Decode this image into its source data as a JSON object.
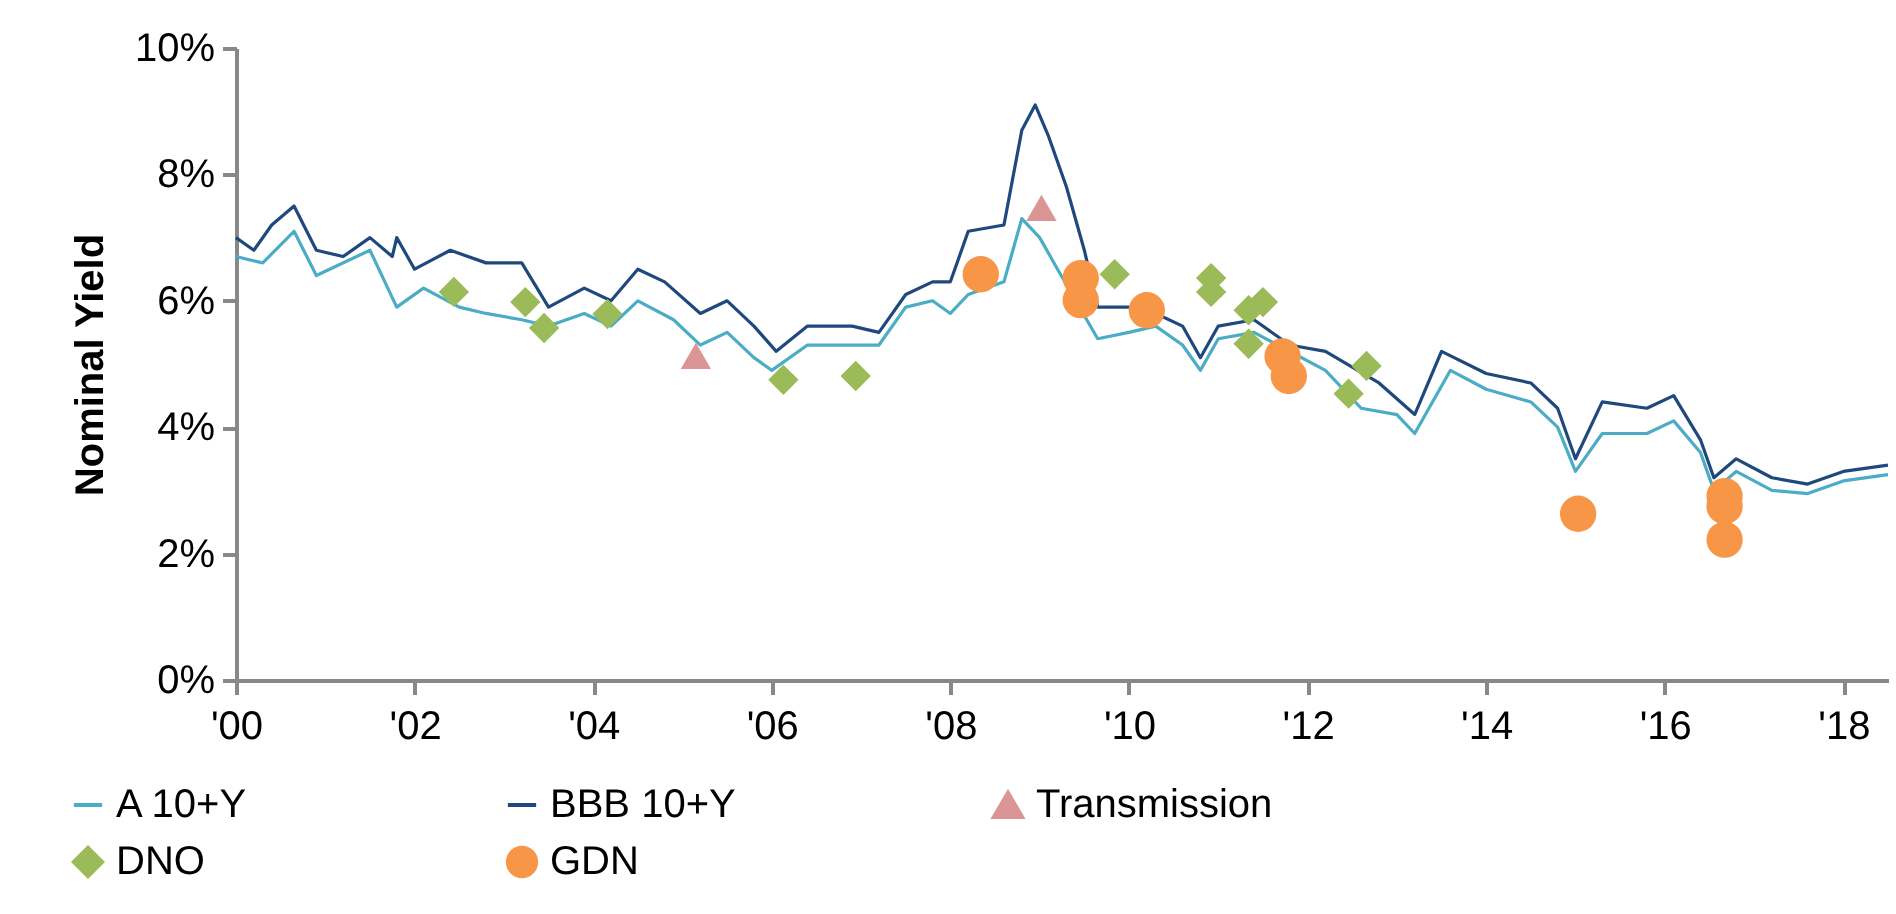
{
  "chart_data": {
    "type": "line",
    "ylabel": "Nominal Yield",
    "xlim": [
      2000,
      2018.5
    ],
    "xticks": [
      {
        "value": 2000,
        "label": "'00"
      },
      {
        "value": 2002,
        "label": "'02"
      },
      {
        "value": 2004,
        "label": "'04"
      },
      {
        "value": 2006,
        "label": "'06"
      },
      {
        "value": 2008,
        "label": "'08"
      },
      {
        "value": 2010,
        "label": "'10"
      },
      {
        "value": 2012,
        "label": "'12"
      },
      {
        "value": 2014,
        "label": "'14"
      },
      {
        "value": 2016,
        "label": "'16"
      },
      {
        "value": 2018,
        "label": "'18"
      }
    ],
    "ylim": [
      0,
      10
    ],
    "yticks": [
      {
        "value": 0,
        "label": "0%"
      },
      {
        "value": 2,
        "label": "2%"
      },
      {
        "value": 4,
        "label": "4%"
      },
      {
        "value": 6,
        "label": "6%"
      },
      {
        "value": 8,
        "label": "8%"
      },
      {
        "value": 10,
        "label": "10%"
      }
    ],
    "legend": "bottom",
    "line_style": "solid",
    "series": [
      {
        "name": "A 10+Y",
        "type": "line",
        "color": "#4bacc6",
        "x": [
          2000,
          2000.3,
          2000.65,
          2000.9,
          2001.5,
          2001.8,
          2002.1,
          2002.5,
          2002.8,
          2003.2,
          2003.5,
          2003.9,
          2004.2,
          2004.5,
          2004.9,
          2005.2,
          2005.5,
          2005.8,
          2006,
          2006.4,
          2006.9,
          2007.2,
          2007.5,
          2007.8,
          2008,
          2008.2,
          2008.6,
          2008.8,
          2009,
          2009.2,
          2009.65,
          2010,
          2010.3,
          2010.6,
          2010.8,
          2011,
          2011.4,
          2012.2,
          2012.6,
          2013,
          2013.2,
          2013.6,
          2014,
          2014.5,
          2014.8,
          2015,
          2015.3,
          2015.8,
          2016.1,
          2016.4,
          2016.55,
          2016.8,
          2017.2,
          2017.6,
          2018,
          2018.5
        ],
        "values": [
          6.7,
          6.6,
          7.1,
          6.4,
          6.8,
          5.9,
          6.2,
          5.9,
          5.8,
          5.7,
          5.6,
          5.8,
          5.6,
          6.0,
          5.7,
          5.3,
          5.5,
          5.1,
          4.9,
          5.3,
          5.3,
          5.3,
          5.9,
          6.0,
          5.8,
          6.1,
          6.3,
          7.3,
          7.0,
          6.5,
          5.4,
          5.5,
          5.6,
          5.3,
          4.9,
          5.4,
          5.5,
          4.9,
          4.3,
          4.2,
          3.9,
          4.9,
          4.6,
          4.4,
          4.0,
          3.3,
          3.9,
          3.9,
          4.1,
          3.6,
          3.0,
          3.3,
          3.0,
          2.95,
          3.15,
          3.25
        ]
      },
      {
        "name": "BBB 10+Y",
        "type": "line",
        "color": "#1f497d",
        "x": [
          2000,
          2000.2,
          2000.4,
          2000.65,
          2000.9,
          2001.2,
          2001.5,
          2001.75,
          2001.8,
          2002,
          2002.4,
          2002.8,
          2003.2,
          2003.5,
          2003.9,
          2004.2,
          2004.5,
          2004.8,
          2005.2,
          2005.5,
          2005.8,
          2006.05,
          2006.4,
          2006.9,
          2007.2,
          2007.5,
          2007.8,
          2008,
          2008.2,
          2008.6,
          2008.8,
          2008.95,
          2009.1,
          2009.3,
          2009.5,
          2009.65,
          2010,
          2010.3,
          2010.6,
          2010.8,
          2011,
          2011.4,
          2011.8,
          2012.2,
          2012.8,
          2013.2,
          2013.5,
          2014,
          2014.5,
          2014.8,
          2015,
          2015.3,
          2015.8,
          2016.1,
          2016.4,
          2016.55,
          2016.8,
          2017.2,
          2017.6,
          2018,
          2018.5
        ],
        "values": [
          7.0,
          6.8,
          7.2,
          7.5,
          6.8,
          6.7,
          7.0,
          6.7,
          7.0,
          6.5,
          6.8,
          6.6,
          6.6,
          5.9,
          6.2,
          6.0,
          6.5,
          6.3,
          5.8,
          6.0,
          5.6,
          5.2,
          5.6,
          5.6,
          5.5,
          6.1,
          6.3,
          6.3,
          7.1,
          7.2,
          8.7,
          9.1,
          8.6,
          7.8,
          6.8,
          5.9,
          5.9,
          5.8,
          5.6,
          5.1,
          5.6,
          5.7,
          5.3,
          5.2,
          4.7,
          4.2,
          5.2,
          4.85,
          4.7,
          4.3,
          3.5,
          4.4,
          4.3,
          4.5,
          3.8,
          3.2,
          3.5,
          3.2,
          3.1,
          3.3,
          3.4
        ]
      },
      {
        "name": "Transmission",
        "type": "scatter",
        "marker": "triangle",
        "color": "#d99694",
        "x": [
          2005.15,
          2009.02
        ],
        "values": [
          5.13,
          7.47
        ]
      },
      {
        "name": "DNO",
        "type": "scatter",
        "marker": "diamond",
        "color": "#9bbb59",
        "x": [
          2002.44,
          2003.24,
          2003.45,
          2004.16,
          2006.13,
          2006.94,
          2009.84,
          2010.92,
          2010.92,
          2011.34,
          2011.5,
          2011.34,
          2012.66,
          2012.46
        ],
        "values": [
          6.14,
          5.98,
          5.57,
          5.79,
          4.75,
          4.81,
          6.42,
          6.36,
          6.14,
          5.85,
          5.98,
          5.32,
          4.97,
          4.53
        ]
      },
      {
        "name": "GDN",
        "type": "scatter",
        "marker": "circle",
        "color": "#f79646",
        "x": [
          2008.34,
          2009.46,
          2009.46,
          2010.2,
          2011.72,
          2011.79,
          2015.03,
          2016.67,
          2016.67,
          2016.67
        ],
        "values": [
          6.42,
          6.36,
          6.01,
          5.85,
          5.12,
          4.81,
          2.63,
          2.91,
          2.75,
          2.22
        ]
      }
    ]
  }
}
